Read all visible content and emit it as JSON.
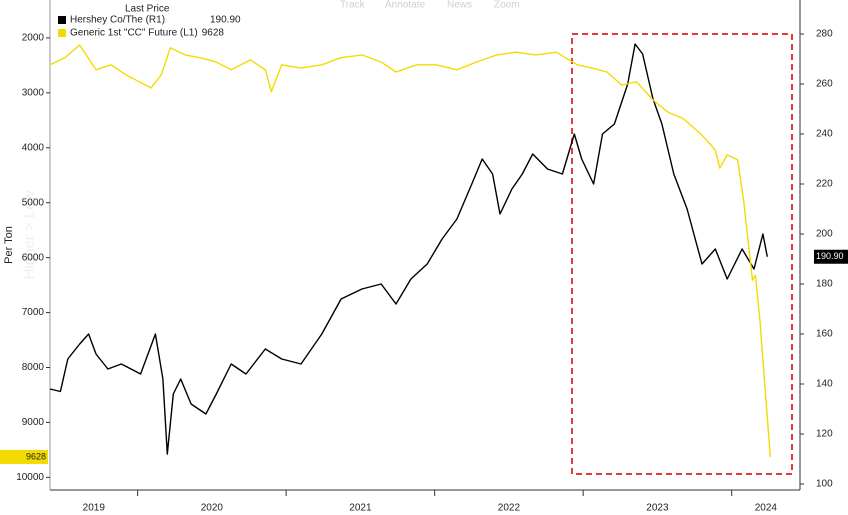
{
  "toolbar": [
    "Track",
    "Annotate",
    "News",
    "Zoom"
  ],
  "chart_data": {
    "type": "line",
    "legend_title": "Last Price",
    "ylabel": "Per Ton",
    "watermark": "Higher > Low",
    "xlim": [
      2019.41,
      2024.46
    ],
    "xticks": [
      2019,
      2020,
      2021,
      2022,
      2023,
      2024
    ],
    "ylim": [
      10230,
      1310
    ],
    "yticks": [
      2000,
      3000,
      4000,
      5000,
      6000,
      7000,
      8000,
      9000,
      10000
    ],
    "y2lim": [
      97.6,
      293.6
    ],
    "y2ticks": [
      100,
      120,
      140,
      160,
      180,
      200,
      220,
      240,
      260,
      280
    ],
    "grid": false,
    "series": [
      {
        "name": "Hershey Co/The (R1)",
        "color": "#000000",
        "axis": "y2",
        "last_price": "190.90",
        "x": [
          2019.41,
          2019.48,
          2019.53,
          2019.61,
          2019.67,
          2019.72,
          2019.8,
          2019.89,
          2020.02,
          2020.12,
          2020.17,
          2020.2,
          2020.24,
          2020.29,
          2020.36,
          2020.46,
          2020.53,
          2020.63,
          2020.73,
          2020.86,
          2020.97,
          2021.1,
          2021.24,
          2021.37,
          2021.51,
          2021.64,
          2021.74,
          2021.84,
          2021.95,
          2022.05,
          2022.15,
          2022.25,
          2022.32,
          2022.39,
          2022.44,
          2022.52,
          2022.59,
          2022.66,
          2022.76,
          2022.86,
          2022.94,
          2022.99,
          2023.07,
          2023.13,
          2023.21,
          2023.3,
          2023.35,
          2023.4,
          2023.47,
          2023.53,
          2023.61,
          2023.7,
          2023.8,
          2023.89,
          2023.97,
          2024.07,
          2024.15,
          2024.21,
          2024.24
        ],
        "values": [
          138,
          137,
          150,
          156,
          160,
          152,
          146,
          148,
          144,
          160,
          142,
          112,
          136,
          142,
          132,
          128,
          136,
          148,
          144,
          154,
          150,
          148,
          160,
          174,
          178,
          180,
          172,
          182,
          188,
          198,
          206,
          220,
          230,
          224,
          208,
          218,
          224,
          232,
          226,
          224,
          240,
          230,
          220,
          240,
          244,
          260,
          276,
          272,
          254,
          244,
          224,
          210,
          188,
          194,
          182,
          194,
          186,
          200,
          190.9
        ]
      },
      {
        "name": "Generic 1st \"CC\" Future (L1)",
        "color": "#f2dc00",
        "axis": "y",
        "last_price": "9628",
        "x": [
          2019.41,
          2019.51,
          2019.61,
          2019.72,
          2019.82,
          2019.92,
          2020.09,
          2020.16,
          2020.22,
          2020.32,
          2020.42,
          2020.53,
          2020.63,
          2020.76,
          2020.86,
          2020.9,
          2020.97,
          2021.1,
          2021.24,
          2021.37,
          2021.51,
          2021.64,
          2021.74,
          2021.88,
          2022.01,
          2022.15,
          2022.28,
          2022.42,
          2022.55,
          2022.68,
          2022.82,
          2022.96,
          2023.06,
          2023.16,
          2023.26,
          2023.36,
          2023.47,
          2023.57,
          2023.67,
          2023.8,
          2023.89,
          2023.92,
          2023.97,
          2024.04,
          2024.08,
          2024.11,
          2024.14,
          2024.16,
          2024.19,
          2024.26
        ],
        "values": [
          2490,
          2360,
          2130,
          2580,
          2490,
          2670,
          2910,
          2670,
          2180,
          2310,
          2360,
          2440,
          2580,
          2400,
          2580,
          2980,
          2490,
          2550,
          2490,
          2360,
          2310,
          2440,
          2620,
          2490,
          2490,
          2580,
          2440,
          2310,
          2260,
          2310,
          2260,
          2490,
          2550,
          2620,
          2860,
          2800,
          3130,
          3350,
          3460,
          3770,
          4040,
          4370,
          4130,
          4220,
          4950,
          5680,
          6410,
          6320,
          7140,
          9628
        ]
      }
    ]
  }
}
